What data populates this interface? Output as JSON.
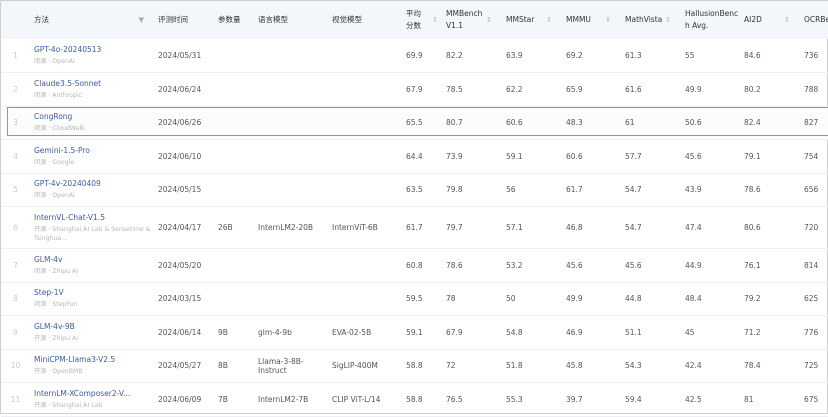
{
  "columns": {
    "method": "方法",
    "date": "评测时间",
    "params": "参数量",
    "lang": "语言模型",
    "vision": "视觉模型",
    "avg": "平均分数",
    "mmbench": "MMBench V1.1",
    "mmstar": "MMStar",
    "mmmu": "MMMU",
    "mathvista": "MathVista",
    "hallusion": "HallusionBench Avg.",
    "ai2d": "AI2D",
    "ocrbench": "OCRBench"
  },
  "highlight_color": "#f07068",
  "rows": [
    {
      "idx": "1",
      "name": "GPT-4o-20240513",
      "sub": "闭源 · OpenAI",
      "date": "2024/05/31",
      "params": "",
      "lang": "",
      "vision": "",
      "avg": "69.9",
      "mmbench": "82.2",
      "mmstar": "63.9",
      "mmmu": "69.2",
      "mathvista": "61.3",
      "hallusion": "55",
      "ai2d": "84.6",
      "ocrbench": "736"
    },
    {
      "idx": "2",
      "name": "Claude3.5-Sonnet",
      "sub": "闭源 · Anthropic",
      "date": "2024/06/24",
      "params": "",
      "lang": "",
      "vision": "",
      "avg": "67.9",
      "mmbench": "78.5",
      "mmstar": "62.2",
      "mmmu": "65.9",
      "mathvista": "61.6",
      "hallusion": "49.9",
      "ai2d": "80.2",
      "ocrbench": "788"
    },
    {
      "idx": "3",
      "name": "CongRong",
      "sub": "闭源 · CloudWalk",
      "date": "2024/06/26",
      "params": "",
      "lang": "",
      "vision": "",
      "avg": "65.5",
      "mmbench": "80.7",
      "mmstar": "60.6",
      "mmmu": "48.3",
      "mathvista": "61",
      "hallusion": "50.6",
      "ai2d": "82.4",
      "ocrbench": "827"
    },
    {
      "idx": "4",
      "name": "Gemini-1.5-Pro",
      "sub": "闭源 · Google",
      "date": "2024/06/10",
      "params": "",
      "lang": "",
      "vision": "",
      "avg": "64.4",
      "mmbench": "73.9",
      "mmstar": "59.1",
      "mmmu": "60.6",
      "mathvista": "57.7",
      "hallusion": "45.6",
      "ai2d": "79.1",
      "ocrbench": "754"
    },
    {
      "idx": "5",
      "name": "GPT-4v-20240409",
      "sub": "闭源 · OpenAI",
      "date": "2024/05/15",
      "params": "",
      "lang": "",
      "vision": "",
      "avg": "63.5",
      "mmbench": "79.8",
      "mmstar": "56",
      "mmmu": "61.7",
      "mathvista": "54.7",
      "hallusion": "43.9",
      "ai2d": "78.6",
      "ocrbench": "656"
    },
    {
      "idx": "6",
      "name": "InternVL-Chat-V1.5",
      "sub": "开源 · Shanghai AI Lab & Sensetime & Tsinghua...",
      "date": "2024/04/17",
      "params": "26B",
      "lang": "InternLM2-20B",
      "vision": "InternViT-6B",
      "avg": "61.7",
      "mmbench": "79.7",
      "mmstar": "57.1",
      "mmmu": "46.8",
      "mathvista": "54.7",
      "hallusion": "47.4",
      "ai2d": "80.6",
      "ocrbench": "720"
    },
    {
      "idx": "7",
      "name": "GLM-4v",
      "sub": "闭源 · Zhipu AI",
      "date": "2024/05/20",
      "params": "",
      "lang": "",
      "vision": "",
      "avg": "60.8",
      "mmbench": "78.6",
      "mmstar": "53.2",
      "mmmu": "45.6",
      "mathvista": "45.6",
      "hallusion": "44.9",
      "ai2d": "76.1",
      "ocrbench": "814"
    },
    {
      "idx": "8",
      "name": "Step-1V",
      "sub": "闭源 · StepFun",
      "date": "2024/03/15",
      "params": "",
      "lang": "",
      "vision": "",
      "avg": "59.5",
      "mmbench": "78",
      "mmstar": "50",
      "mmmu": "49.9",
      "mathvista": "44.8",
      "hallusion": "48.4",
      "ai2d": "79.2",
      "ocrbench": "625"
    },
    {
      "idx": "9",
      "name": "GLM-4v-9B",
      "sub": "开源 · Zhipu AI",
      "date": "2024/06/14",
      "params": "9B",
      "lang": "glm-4-9b",
      "vision": "EVA-02-5B",
      "avg": "59.1",
      "mmbench": "67.9",
      "mmstar": "54.8",
      "mmmu": "46.9",
      "mathvista": "51.1",
      "hallusion": "45",
      "ai2d": "71.2",
      "ocrbench": "776"
    },
    {
      "idx": "10",
      "name": "MiniCPM-Llama3-V2.5",
      "sub": "开源 · OpenBMB",
      "date": "2024/05/27",
      "params": "8B",
      "lang": "Llama-3-8B-Instruct",
      "vision": "SigLIP-400M",
      "avg": "58.8",
      "mmbench": "72",
      "mmstar": "51.8",
      "mmmu": "45.8",
      "mathvista": "54.3",
      "hallusion": "42.4",
      "ai2d": "78.4",
      "ocrbench": "725"
    },
    {
      "idx": "11",
      "name": "InternLM-XComposer2-V...",
      "sub": "开源 · Shanghai AI Lab",
      "date": "2024/06/09",
      "params": "7B",
      "lang": "InternLM2-7B",
      "vision": "CLIP ViT-L/14",
      "avg": "58.8",
      "mmbench": "76.5",
      "mmstar": "55.3",
      "mmmu": "39.7",
      "mathvista": "59.4",
      "hallusion": "42.5",
      "ai2d": "81",
      "ocrbench": "675"
    }
  ]
}
